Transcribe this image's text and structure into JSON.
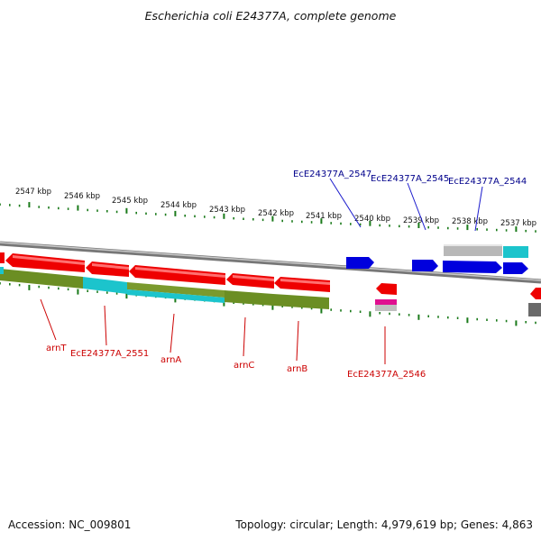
{
  "title": "Escherichia coli E24377A, complete genome",
  "footer": {
    "accession": "Accession: NC_009801",
    "summary": "Topology: circular; Length: 4,979,619 bp; Genes: 4,863"
  },
  "scale": {
    "labels": [
      "2547 kbp",
      "2546 kbp",
      "2545 kbp",
      "2544 kbp",
      "2543 kbp",
      "2542 kbp",
      "2541 kbp",
      "2540 kbp",
      "2539 kbp",
      "2538 kbp",
      "2537 kbp"
    ]
  },
  "gene_labels": {
    "top": [
      "EcE24377A_2547",
      "EcE24377A_2545",
      "EcE24377A_2544"
    ],
    "bottom": [
      "arnT",
      "EcE24377A_2551",
      "arnA",
      "arnC",
      "arnB",
      "EcE24377A_2546"
    ]
  },
  "colors": {
    "forward_gene": "#0000dd",
    "reverse_gene": "#ee0000",
    "top_label": "#00008b",
    "bottom_label": "#cc0000",
    "tick": "#1a7a1a",
    "backbone": "#888888",
    "olive": "#6b8e23",
    "cyan": "#1cc4cc",
    "grey_feature": "#b8b8b8",
    "pink": "#e01090"
  }
}
